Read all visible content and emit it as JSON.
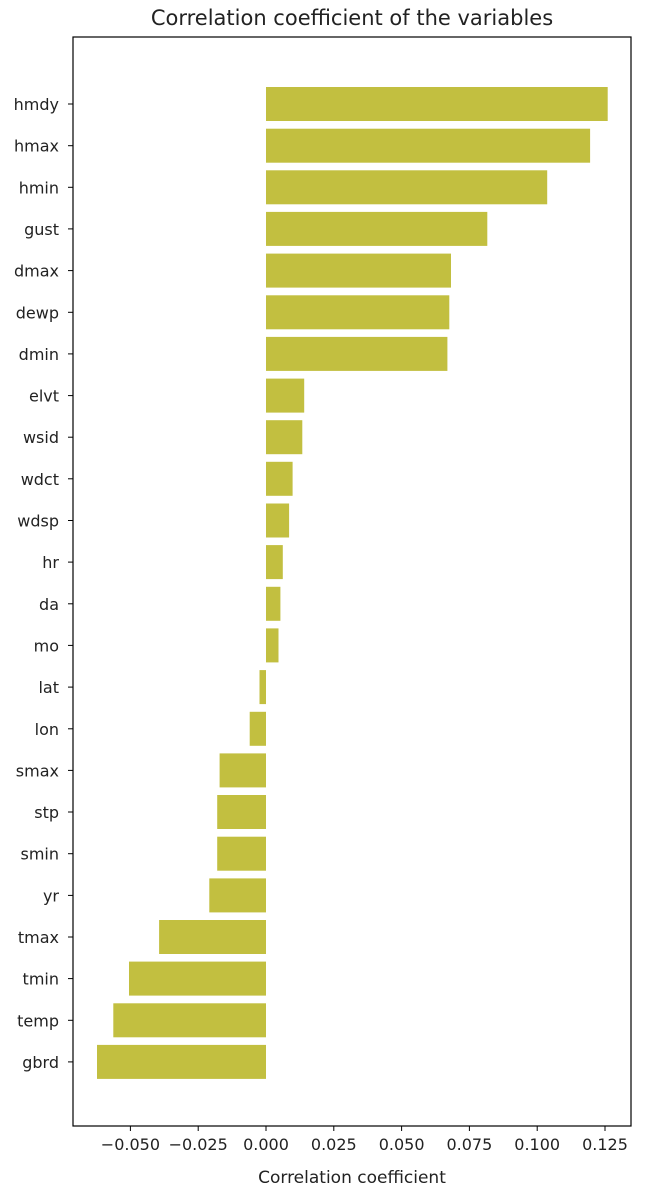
{
  "chart_data": {
    "type": "bar",
    "orientation": "horizontal",
    "title": "Correlation coefficient of the variables",
    "xlabel": "Correlation coefficient",
    "ylabel": "",
    "xlim": [
      -0.075,
      0.135
    ],
    "xticks": [
      -0.05,
      -0.025,
      0.0,
      0.025,
      0.05,
      0.075,
      0.1,
      0.125
    ],
    "xtick_labels": [
      "−0.050",
      "−0.025",
      "0.000",
      "0.025",
      "0.050",
      "0.075",
      "0.100",
      "0.125"
    ],
    "grid": false,
    "bar_color": "#c2bf40",
    "categories": [
      "hmdy",
      "hmax",
      "hmin",
      "gust",
      "dmax",
      "dewp",
      "dmin",
      "elvt",
      "wsid",
      "wdct",
      "wdsp",
      "hr",
      "da",
      "mo",
      "lat",
      "lon",
      "smax",
      "stp",
      "smin",
      "yr",
      "tmax",
      "tmin",
      "temp",
      "gbrd"
    ],
    "values": [
      0.126,
      0.1195,
      0.1037,
      0.0816,
      0.0682,
      0.0676,
      0.0669,
      0.0141,
      0.0134,
      0.0098,
      0.0085,
      0.0062,
      0.0053,
      0.0046,
      -0.0024,
      -0.006,
      -0.0171,
      -0.018,
      -0.018,
      -0.0209,
      -0.0394,
      -0.0505,
      -0.0563,
      -0.0623
    ]
  }
}
